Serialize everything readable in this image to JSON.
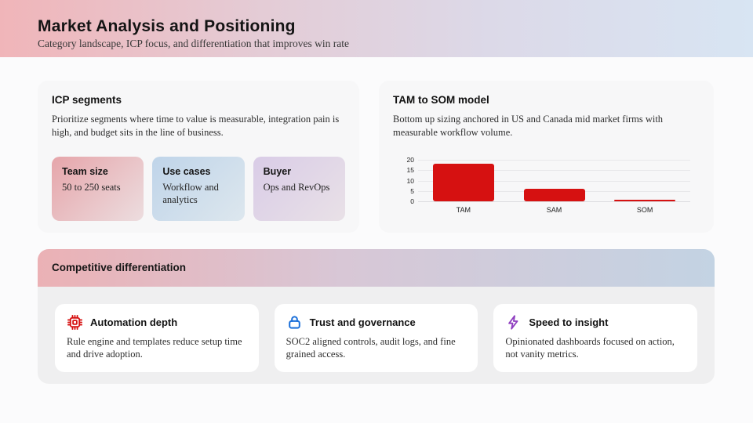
{
  "slide": {
    "title": "Market Analysis and Positioning",
    "subtitle": "Category landscape, ICP focus, and differentiation that improves win rate"
  },
  "icp": {
    "title": "ICP segments",
    "description": "Prioritize segments where time to value is measurable, integration pain is high, and budget sits in the line of business.",
    "segments": [
      {
        "label": "Team size",
        "value": "50 to 250 seats"
      },
      {
        "label": "Use cases",
        "value": "Workflow and analytics"
      },
      {
        "label": "Buyer",
        "value": "Ops and RevOps"
      }
    ]
  },
  "tam": {
    "title": "TAM to SOM model",
    "description": "Bottom up sizing anchored in US and Canada mid market firms with measurable workflow volume."
  },
  "chart_data": {
    "type": "bar",
    "categories": [
      "TAM",
      "SAM",
      "SOM"
    ],
    "values": [
      18,
      6,
      0.9
    ],
    "title": "TAM to SOM model",
    "xlabel": "",
    "ylabel": "",
    "ylim": [
      0,
      20
    ],
    "yticks": [
      0,
      5,
      10,
      15,
      20
    ],
    "bar_color": "#d61111",
    "grid": true,
    "legend": false
  },
  "competitive": {
    "title": "Competitive differentiation",
    "cards": [
      {
        "icon": "chip-icon",
        "icon_color": "#d61111",
        "title": "Automation depth",
        "body": "Rule engine and templates reduce setup time and drive adoption."
      },
      {
        "icon": "lock-icon",
        "icon_color": "#1a6fd9",
        "title": "Trust and governance",
        "body": "SOC2 aligned controls, audit logs, and fine grained access."
      },
      {
        "icon": "bolt-icon",
        "icon_color": "#8f3fc0",
        "title": "Speed to insight",
        "body": "Opinionated dashboards focused on action, not vanity metrics."
      }
    ]
  },
  "colors": {
    "header_gradient_left": "#f0b5b9",
    "header_gradient_right": "#d8e5f3",
    "card_background": "#f7f7f8",
    "competitive_body_background": "#efeff0",
    "bar_red": "#d61111",
    "segment_pink": "#e6a5aa",
    "segment_blue": "#bfd4e9",
    "segment_purple": "#d9cce7"
  }
}
